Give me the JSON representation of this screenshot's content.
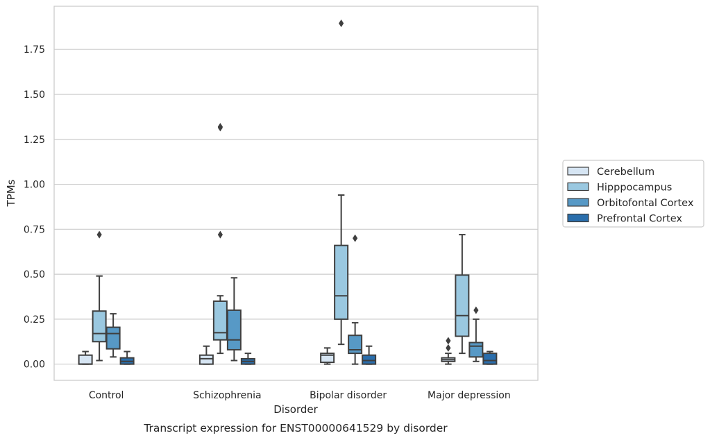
{
  "caption": "Transcript expression for ENST00000641529 by disorder",
  "chart_data": {
    "type": "box",
    "title": "",
    "xlabel": "Disorder",
    "ylabel": "TPMs",
    "ylim": [
      -0.09,
      1.99
    ],
    "yticks": [
      0.0,
      0.25,
      0.5,
      0.75,
      1.0,
      1.25,
      1.5,
      1.75
    ],
    "ytick_labels": [
      "0.00",
      "0.25",
      "0.50",
      "0.75",
      "1.00",
      "1.25",
      "1.50",
      "1.75"
    ],
    "grid": "horizontal",
    "legend_position": "right",
    "categories": [
      "Control",
      "Schizophrenia",
      "Bipolar disorder",
      "Major depression"
    ],
    "series": [
      {
        "name": "Cerebellum",
        "color": "#d6e5f3",
        "boxes": [
          {
            "whislo": 0.0,
            "q1": 0.0,
            "med": 0.0,
            "q3": 0.05,
            "whishi": 0.07,
            "fliers": []
          },
          {
            "whislo": 0.0,
            "q1": 0.0,
            "med": 0.03,
            "q3": 0.05,
            "whishi": 0.1,
            "fliers": []
          },
          {
            "whislo": 0.0,
            "q1": 0.01,
            "med": 0.05,
            "q3": 0.06,
            "whishi": 0.09,
            "fliers": []
          },
          {
            "whislo": 0.0,
            "q1": 0.015,
            "med": 0.025,
            "q3": 0.035,
            "whishi": 0.06,
            "fliers": [
              0.09,
              0.13
            ]
          }
        ]
      },
      {
        "name": "Hipppocampus",
        "color": "#9ac8e0",
        "boxes": [
          {
            "whislo": 0.02,
            "q1": 0.125,
            "med": 0.17,
            "q3": 0.295,
            "whishi": 0.49,
            "fliers": [
              0.72
            ]
          },
          {
            "whislo": 0.06,
            "q1": 0.135,
            "med": 0.175,
            "q3": 0.35,
            "whishi": 0.38,
            "fliers": [
              0.72,
              1.315,
              1.32
            ]
          },
          {
            "whislo": 0.11,
            "q1": 0.25,
            "med": 0.38,
            "q3": 0.66,
            "whishi": 0.94,
            "fliers": [
              1.895
            ]
          },
          {
            "whislo": 0.06,
            "q1": 0.155,
            "med": 0.27,
            "q3": 0.495,
            "whishi": 0.72,
            "fliers": []
          }
        ]
      },
      {
        "name": "Orbitofontal Cortex",
        "color": "#5799c6",
        "boxes": [
          {
            "whislo": 0.04,
            "q1": 0.085,
            "med": 0.17,
            "q3": 0.205,
            "whishi": 0.28,
            "fliers": []
          },
          {
            "whislo": 0.02,
            "q1": 0.08,
            "med": 0.135,
            "q3": 0.3,
            "whishi": 0.48,
            "fliers": []
          },
          {
            "whislo": 0.0,
            "q1": 0.06,
            "med": 0.08,
            "q3": 0.16,
            "whishi": 0.23,
            "fliers": [
              0.7
            ]
          },
          {
            "whislo": 0.015,
            "q1": 0.04,
            "med": 0.1,
            "q3": 0.12,
            "whishi": 0.25,
            "fliers": [
              0.3
            ]
          }
        ]
      },
      {
        "name": "Prefrontal Cortex",
        "color": "#2a6eac",
        "boxes": [
          {
            "whislo": 0.0,
            "q1": 0.0,
            "med": 0.015,
            "q3": 0.035,
            "whishi": 0.07,
            "fliers": []
          },
          {
            "whislo": 0.0,
            "q1": 0.0,
            "med": 0.015,
            "q3": 0.03,
            "whishi": 0.06,
            "fliers": []
          },
          {
            "whislo": 0.0,
            "q1": 0.0,
            "med": 0.02,
            "q3": 0.05,
            "whishi": 0.1,
            "fliers": []
          },
          {
            "whislo": 0.0,
            "q1": 0.0,
            "med": 0.02,
            "q3": 0.06,
            "whishi": 0.07,
            "fliers": []
          }
        ]
      }
    ]
  }
}
